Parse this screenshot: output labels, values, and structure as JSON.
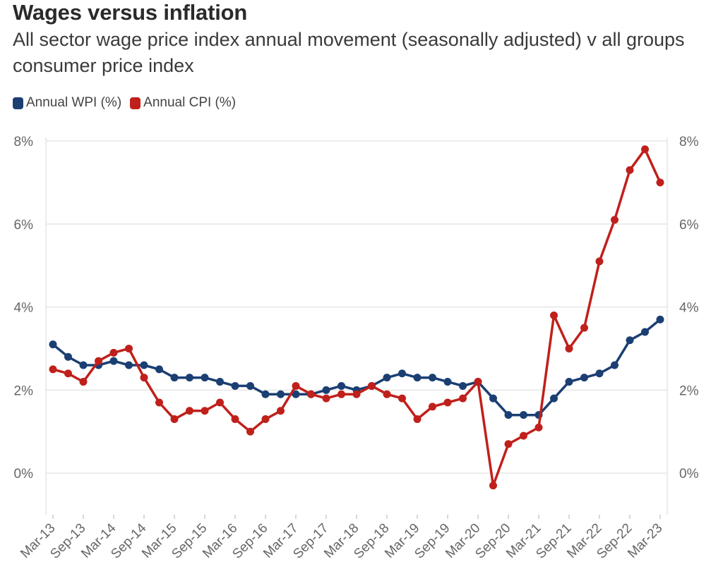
{
  "header": {
    "title": "Wages versus inflation",
    "subtitle": "All sector wage price index annual movement (seasonally adjusted) v all groups consumer price index"
  },
  "legend": {
    "items": [
      {
        "label": "Annual WPI (%)",
        "color": "#1b3f73"
      },
      {
        "label": "Annual CPI (%)",
        "color": "#c0201b"
      }
    ]
  },
  "chart_data": {
    "type": "line",
    "title": "Wages versus inflation",
    "subtitle": "All sector wage price index annual movement (seasonally adjusted) v all groups consumer price index",
    "xlabel": "",
    "ylabel": "",
    "ylim": [
      -1,
      8
    ],
    "yticks": [
      0,
      2,
      4,
      6,
      8
    ],
    "ytick_labels": [
      "0%",
      "2%",
      "4%",
      "6%",
      "8%"
    ],
    "right_axis": true,
    "grid": true,
    "legend_position": "top-left",
    "x": [
      "Mar-13",
      "Jun-13",
      "Sep-13",
      "Dec-13",
      "Mar-14",
      "Jun-14",
      "Sep-14",
      "Dec-14",
      "Mar-15",
      "Jun-15",
      "Sep-15",
      "Dec-15",
      "Mar-16",
      "Jun-16",
      "Sep-16",
      "Dec-16",
      "Mar-17",
      "Jun-17",
      "Sep-17",
      "Dec-17",
      "Mar-18",
      "Jun-18",
      "Sep-18",
      "Dec-18",
      "Mar-19",
      "Jun-19",
      "Sep-19",
      "Dec-19",
      "Mar-20",
      "Jun-20",
      "Sep-20",
      "Dec-20",
      "Mar-21",
      "Jun-21",
      "Sep-21",
      "Dec-21",
      "Mar-22",
      "Jun-22",
      "Sep-22",
      "Dec-22",
      "Mar-23"
    ],
    "x_tick_labels": [
      "Mar-13",
      "Sep-13",
      "Mar-14",
      "Sep-14",
      "Mar-15",
      "Sep-15",
      "Mar-16",
      "Sep-16",
      "Mar-17",
      "Sep-17",
      "Mar-18",
      "Sep-18",
      "Mar-19",
      "Sep-19",
      "Mar-20",
      "Sep-20",
      "Mar-21",
      "Sep-21",
      "Mar-22",
      "Sep-22",
      "Mar-23"
    ],
    "series": [
      {
        "name": "Annual WPI (%)",
        "color": "#1b3f73",
        "values": [
          3.1,
          2.8,
          2.6,
          2.6,
          2.7,
          2.6,
          2.6,
          2.5,
          2.3,
          2.3,
          2.3,
          2.2,
          2.1,
          2.1,
          1.9,
          1.9,
          1.9,
          1.9,
          2.0,
          2.1,
          2.0,
          2.1,
          2.3,
          2.4,
          2.3,
          2.3,
          2.2,
          2.1,
          2.2,
          1.8,
          1.4,
          1.4,
          1.4,
          1.8,
          2.2,
          2.3,
          2.4,
          2.6,
          3.2,
          3.4,
          3.7
        ]
      },
      {
        "name": "Annual CPI (%)",
        "color": "#c0201b",
        "values": [
          2.5,
          2.4,
          2.2,
          2.7,
          2.9,
          3.0,
          2.3,
          1.7,
          1.3,
          1.5,
          1.5,
          1.7,
          1.3,
          1.0,
          1.3,
          1.5,
          2.1,
          1.9,
          1.8,
          1.9,
          1.9,
          2.1,
          1.9,
          1.8,
          1.3,
          1.6,
          1.7,
          1.8,
          2.2,
          -0.3,
          0.7,
          0.9,
          1.1,
          3.8,
          3.0,
          3.5,
          5.1,
          6.1,
          7.3,
          7.8,
          7.0
        ]
      }
    ]
  }
}
